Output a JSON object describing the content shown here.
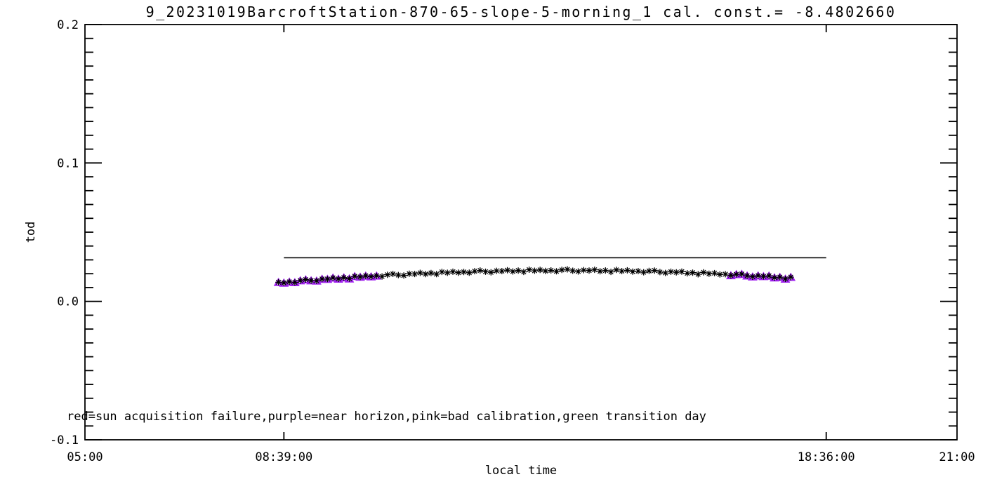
{
  "title": "9_20231019BarcroftStation-870-65-slope-5-morning_1 cal. const.= -8.4802660",
  "axes": {
    "xlabel": "local time",
    "ylabel": "tod",
    "xlim": [
      5,
      21
    ],
    "ylim": [
      -0.1,
      0.2
    ],
    "xticks": [
      {
        "value": 5,
        "label": "05:00",
        "tick": false
      },
      {
        "value": 8.65,
        "label": "08:39:00",
        "tick": true
      },
      {
        "value": 18.6,
        "label": "18:36:00",
        "tick": true
      },
      {
        "value": 21,
        "label": "21:00",
        "tick": false
      }
    ],
    "yticks": [
      {
        "value": -0.1,
        "label": "-0.1"
      },
      {
        "value": 0.0,
        "label": "0.0"
      },
      {
        "value": 0.1,
        "label": "0.1"
      },
      {
        "value": 0.2,
        "label": "0.2"
      }
    ],
    "y_minor_step": 0.01
  },
  "annotation": {
    "text": "red=sun acquisition failure,purple=near horizon,pink=bad calibration,green transition day"
  },
  "colors": {
    "foreground": "#000000",
    "background": "#ffffff",
    "near_horizon": "#A020F0"
  },
  "chart_data": {
    "type": "scatter",
    "title": "9_20231019BarcroftStation-870-65-slope-5-morning_1 cal. const.= -8.4802660",
    "xlabel": "local time",
    "ylabel": "tod",
    "xlim_hours": [
      5,
      21
    ],
    "ylim": [
      -0.1,
      0.2
    ],
    "grid": false,
    "legend_note": "red=sun acquisition failure,purple=near horizon,pink=bad calibration,green transition day",
    "reference_line": {
      "y": 0.0315,
      "x_start_hours": 8.65,
      "x_end_hours": 18.6
    },
    "markers": {
      "all_points": "black asterisk",
      "near_horizon_flagged": "purple triangle overlay"
    },
    "points": {
      "t_hours": [
        8.55,
        8.65,
        8.75,
        8.85,
        8.95,
        9.05,
        9.15,
        9.25,
        9.35,
        9.45,
        9.55,
        9.65,
        9.75,
        9.85,
        9.95,
        10.05,
        10.15,
        10.25,
        10.35,
        10.45,
        10.55,
        10.65,
        10.75,
        10.85,
        10.95,
        11.05,
        11.15,
        11.25,
        11.35,
        11.45,
        11.55,
        11.65,
        11.75,
        11.85,
        11.95,
        12.05,
        12.15,
        12.25,
        12.35,
        12.45,
        12.55,
        12.65,
        12.75,
        12.85,
        12.95,
        13.05,
        13.15,
        13.25,
        13.35,
        13.45,
        13.55,
        13.65,
        13.75,
        13.85,
        13.95,
        14.05,
        14.15,
        14.25,
        14.35,
        14.45,
        14.55,
        14.65,
        14.75,
        14.85,
        14.95,
        15.05,
        15.15,
        15.25,
        15.35,
        15.45,
        15.55,
        15.65,
        15.75,
        15.85,
        15.95,
        16.05,
        16.15,
        16.25,
        16.35,
        16.45,
        16.55,
        16.65,
        16.75,
        16.85,
        16.95,
        17.05,
        17.15,
        17.25,
        17.35,
        17.45,
        17.55,
        17.65,
        17.75,
        17.85,
        17.95
      ],
      "tod": [
        0.0138,
        0.01334,
        0.01407,
        0.0137,
        0.01502,
        0.01573,
        0.01503,
        0.01483,
        0.01613,
        0.01611,
        0.01699,
        0.01627,
        0.01714,
        0.0164,
        0.01815,
        0.0176,
        0.01844,
        0.01788,
        0.0185,
        0.01803,
        0.01924,
        0.01985,
        0.01905,
        0.01875,
        0.01994,
        0.01982,
        0.0206,
        0.01977,
        0.02053,
        0.01969,
        0.02134,
        0.02068,
        0.02142,
        0.02075,
        0.02128,
        0.0207,
        0.02181,
        0.02231,
        0.02141,
        0.021,
        0.02209,
        0.02187,
        0.02254,
        0.02161,
        0.02227,
        0.02132,
        0.02287,
        0.02211,
        0.02274,
        0.02197,
        0.02239,
        0.02171,
        0.02272,
        0.02312,
        0.02211,
        0.0216,
        0.02258,
        0.02226,
        0.02283,
        0.02179,
        0.02235,
        0.0213,
        0.02274,
        0.02188,
        0.02241,
        0.02153,
        0.02185,
        0.02106,
        0.02196,
        0.02226,
        0.02115,
        0.02054,
        0.02142,
        0.02099,
        0.02146,
        0.02031,
        0.02077,
        0.01961,
        0.02095,
        0.01999,
        0.02041,
        0.01943,
        0.01965,
        0.01875,
        0.01956,
        0.01975,
        0.01854,
        0.01782,
        0.01859,
        0.01806,
        0.01842,
        0.01718,
        0.01753,
        0.01627,
        0.01751
      ],
      "near_horizon_flag": [
        1,
        1,
        1,
        1,
        1,
        1,
        1,
        1,
        1,
        1,
        1,
        1,
        1,
        1,
        1,
        1,
        1,
        1,
        1,
        0,
        0,
        0,
        0,
        0,
        0,
        0,
        0,
        0,
        0,
        0,
        0,
        0,
        0,
        0,
        0,
        0,
        0,
        0,
        0,
        0,
        0,
        0,
        0,
        0,
        0,
        0,
        0,
        0,
        0,
        0,
        0,
        0,
        0,
        0,
        0,
        0,
        0,
        0,
        0,
        0,
        0,
        0,
        0,
        0,
        0,
        0,
        0,
        0,
        0,
        0,
        0,
        0,
        0,
        0,
        0,
        0,
        0,
        0,
        0,
        0,
        0,
        0,
        0,
        1,
        1,
        1,
        1,
        1,
        1,
        1,
        1,
        1,
        1,
        1,
        1
      ]
    }
  }
}
